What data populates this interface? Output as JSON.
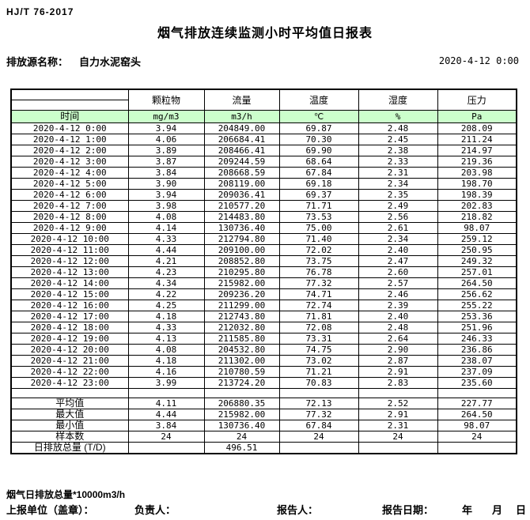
{
  "page": {
    "standard": "HJ/T  76-2017",
    "title": "烟气排放连续监测小时平均值日报表",
    "source_label": "排放源名称：",
    "source_name": "自力水泥窑头",
    "datetime": "2020-4-12 0:00"
  },
  "colors": {
    "unit_row_green": "#ccffcc",
    "border": "#000000"
  },
  "table": {
    "time_header": "时间",
    "columns": [
      "颗粒物",
      "流量",
      "温度",
      "湿度",
      "压力"
    ],
    "units": [
      "mg/m3",
      "m3/h",
      "℃",
      "%",
      "Pa"
    ],
    "rows": [
      {
        "time": "2020-4-12 0:00",
        "values": [
          "3.94",
          "204849.00",
          "69.87",
          "2.48",
          "208.09"
        ]
      },
      {
        "time": "2020-4-12 1:00",
        "values": [
          "4.06",
          "206684.41",
          "70.30",
          "2.45",
          "211.24"
        ]
      },
      {
        "time": "2020-4-12 2:00",
        "values": [
          "3.89",
          "208466.41",
          "69.90",
          "2.38",
          "214.97"
        ]
      },
      {
        "time": "2020-4-12 3:00",
        "values": [
          "3.87",
          "209244.59",
          "68.64",
          "2.33",
          "219.36"
        ]
      },
      {
        "time": "2020-4-12 4:00",
        "values": [
          "3.84",
          "208668.59",
          "67.84",
          "2.31",
          "203.98"
        ]
      },
      {
        "time": "2020-4-12 5:00",
        "values": [
          "3.90",
          "208119.00",
          "69.18",
          "2.34",
          "198.70"
        ]
      },
      {
        "time": "2020-4-12 6:00",
        "values": [
          "3.94",
          "209036.41",
          "69.37",
          "2.35",
          "198.39"
        ]
      },
      {
        "time": "2020-4-12 7:00",
        "values": [
          "3.98",
          "210577.20",
          "71.71",
          "2.49",
          "202.83"
        ]
      },
      {
        "time": "2020-4-12 8:00",
        "values": [
          "4.08",
          "214483.80",
          "73.53",
          "2.56",
          "218.82"
        ]
      },
      {
        "time": "2020-4-12 9:00",
        "values": [
          "4.14",
          "130736.40",
          "75.00",
          "2.61",
          "98.07"
        ]
      },
      {
        "time": "2020-4-12 10:00",
        "values": [
          "4.33",
          "212794.80",
          "71.40",
          "2.34",
          "259.12"
        ]
      },
      {
        "time": "2020-4-12 11:00",
        "values": [
          "4.44",
          "209100.00",
          "72.02",
          "2.40",
          "250.95"
        ]
      },
      {
        "time": "2020-4-12 12:00",
        "values": [
          "4.21",
          "208852.80",
          "73.75",
          "2.47",
          "249.32"
        ]
      },
      {
        "time": "2020-4-12 13:00",
        "values": [
          "4.23",
          "210295.80",
          "76.78",
          "2.60",
          "257.01"
        ]
      },
      {
        "time": "2020-4-12 14:00",
        "values": [
          "4.34",
          "215982.00",
          "77.32",
          "2.57",
          "264.50"
        ]
      },
      {
        "time": "2020-4-12 15:00",
        "values": [
          "4.22",
          "209236.20",
          "74.71",
          "2.46",
          "256.62"
        ]
      },
      {
        "time": "2020-4-12 16:00",
        "values": [
          "4.25",
          "211299.00",
          "72.74",
          "2.39",
          "255.22"
        ]
      },
      {
        "time": "2020-4-12 17:00",
        "values": [
          "4.18",
          "212743.80",
          "71.81",
          "2.40",
          "253.36"
        ]
      },
      {
        "time": "2020-4-12 18:00",
        "values": [
          "4.33",
          "212032.80",
          "72.08",
          "2.48",
          "251.96"
        ]
      },
      {
        "time": "2020-4-12 19:00",
        "values": [
          "4.13",
          "211585.80",
          "73.31",
          "2.64",
          "246.33"
        ]
      },
      {
        "time": "2020-4-12 20:00",
        "values": [
          "4.08",
          "204532.80",
          "74.75",
          "2.90",
          "236.86"
        ]
      },
      {
        "time": "2020-4-12 21:00",
        "values": [
          "4.18",
          "211302.00",
          "73.02",
          "2.87",
          "238.07"
        ]
      },
      {
        "time": "2020-4-12 22:00",
        "values": [
          "4.16",
          "210780.59",
          "71.21",
          "2.91",
          "237.09"
        ]
      },
      {
        "time": "2020-4-12 23:00",
        "values": [
          "3.99",
          "213724.20",
          "70.83",
          "2.83",
          "235.60"
        ]
      }
    ],
    "summary": [
      {
        "label": "平均值",
        "values": [
          "4.11",
          "206880.35",
          "72.13",
          "2.52",
          "227.77"
        ]
      },
      {
        "label": "最大值",
        "values": [
          "4.44",
          "215982.00",
          "77.32",
          "2.91",
          "264.50"
        ]
      },
      {
        "label": "最小值",
        "values": [
          "3.84",
          "130736.40",
          "67.84",
          "2.31",
          "98.07"
        ]
      },
      {
        "label": "样本数",
        "values": [
          "24",
          "24",
          "24",
          "24",
          "24"
        ]
      },
      {
        "label": "日排放总量 (T/D)",
        "values": [
          "",
          "496.51",
          "",
          "",
          ""
        ]
      }
    ]
  },
  "footer": {
    "note": "烟气日排放总量*10000m3/h",
    "report_unit_label": "上报单位（盖章）：",
    "responsible_label": "负责人：",
    "reporter_label": "报告人：",
    "report_date_label": "报告日期：",
    "year_label": "年",
    "month_label": "月",
    "day_label": "日"
  }
}
